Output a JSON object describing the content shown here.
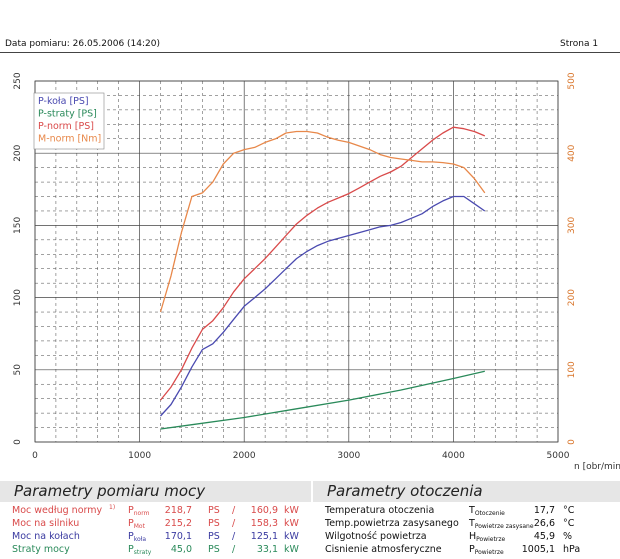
{
  "header": {
    "date_label": "Data pomiaru: 26.05.2006 (14:20)",
    "page_label": "Strona 1"
  },
  "colors": {
    "p_kola": "#4a4ab0",
    "p_straty": "#2a8a5a",
    "p_norm": "#d94a4a",
    "m_norm": "#e8884a",
    "right_axis": "#d9752a"
  },
  "chart_data": {
    "type": "line",
    "x_axis": {
      "label": "n [obr/min]",
      "ticks": [
        0,
        1000,
        2000,
        3000,
        4000,
        5000
      ],
      "lim": [
        0,
        5000
      ]
    },
    "y_left": {
      "ticks": [
        0,
        50,
        100,
        150,
        200,
        250
      ],
      "lim": [
        0,
        250
      ]
    },
    "y_right": {
      "ticks": [
        0,
        100,
        200,
        300,
        400,
        500
      ],
      "lim": [
        0,
        500
      ]
    },
    "grid": true,
    "legend_position": "top-left",
    "series": [
      {
        "name": "P-koła [PS]",
        "axis": "left",
        "color": "#4a4ab0",
        "x": [
          1200,
          1300,
          1400,
          1500,
          1600,
          1700,
          1800,
          1900,
          2000,
          2100,
          2200,
          2300,
          2400,
          2500,
          2600,
          2700,
          2800,
          2900,
          3000,
          3100,
          3200,
          3300,
          3400,
          3500,
          3600,
          3700,
          3800,
          3900,
          4000,
          4100,
          4200,
          4300
        ],
        "y": [
          18,
          26,
          38,
          52,
          64,
          68,
          76,
          85,
          94,
          100,
          106,
          113,
          120,
          127,
          132,
          136,
          139,
          141,
          143,
          145,
          147,
          149,
          150,
          152,
          155,
          158,
          163,
          167,
          170,
          170,
          165,
          160
        ]
      },
      {
        "name": "P-straty [PS]",
        "axis": "left",
        "color": "#2a8a5a",
        "x": [
          1200,
          1500,
          2000,
          2500,
          3000,
          3500,
          4000,
          4300
        ],
        "y": [
          9,
          12,
          17,
          23,
          29,
          36,
          44,
          49
        ]
      },
      {
        "name": "P-norm [PS]",
        "axis": "left",
        "color": "#d94a4a",
        "x": [
          1200,
          1300,
          1400,
          1500,
          1600,
          1700,
          1800,
          1900,
          2000,
          2100,
          2200,
          2300,
          2400,
          2500,
          2600,
          2700,
          2800,
          2900,
          3000,
          3100,
          3200,
          3300,
          3400,
          3500,
          3600,
          3700,
          3800,
          3900,
          4000,
          4100,
          4200,
          4300
        ],
        "y": [
          29,
          38,
          50,
          65,
          78,
          84,
          93,
          104,
          113,
          120,
          127,
          135,
          143,
          151,
          157,
          162,
          166,
          169,
          172,
          176,
          180,
          184,
          187,
          191,
          197,
          203,
          209,
          214,
          218,
          217,
          215,
          212
        ]
      },
      {
        "name": "M-norm [Nm]",
        "axis": "right",
        "color": "#e8884a",
        "x": [
          1200,
          1300,
          1400,
          1500,
          1600,
          1700,
          1800,
          1900,
          2000,
          2100,
          2200,
          2300,
          2400,
          2500,
          2600,
          2700,
          2800,
          2900,
          3000,
          3100,
          3200,
          3300,
          3400,
          3500,
          3600,
          3700,
          3800,
          3900,
          4000,
          4100,
          4200,
          4300
        ],
        "y": [
          180,
          230,
          290,
          340,
          345,
          360,
          385,
          400,
          405,
          408,
          415,
          420,
          428,
          430,
          430,
          428,
          422,
          418,
          415,
          410,
          405,
          398,
          394,
          392,
          390,
          388,
          388,
          387,
          385,
          380,
          365,
          345
        ]
      }
    ]
  },
  "panels": {
    "left": {
      "title": "Parametry pomiaru mocy",
      "rows": [
        {
          "label": "Moc według normy",
          "note": "1)",
          "sym": "P",
          "sub": "norm",
          "ps_val": "218,7",
          "ps_unit": "PS",
          "sep": "/",
          "kw_val": "160,9",
          "kw_unit": "kW",
          "color": "#d94a4a"
        },
        {
          "label": "Moc na silniku",
          "note": "",
          "sym": "P",
          "sub": "Mot",
          "ps_val": "215,2",
          "ps_unit": "PS",
          "sep": "/",
          "kw_val": "158,3",
          "kw_unit": "kW",
          "color": "#d94a4a"
        },
        {
          "label": "Moc na kołach",
          "note": "",
          "sym": "P",
          "sub": "koła",
          "ps_val": "170,1",
          "ps_unit": "PS",
          "sep": "/",
          "kw_val": "125,1",
          "kw_unit": "kW",
          "color": "#3a3aa0"
        },
        {
          "label": "Straty mocy",
          "note": "",
          "sym": "P",
          "sub": "straty",
          "ps_val": "45,0",
          "ps_unit": "PS",
          "sep": "/",
          "kw_val": "33,1",
          "kw_unit": "kW",
          "color": "#2a8a5a"
        }
      ]
    },
    "right": {
      "title": "Parametry otoczenia",
      "rows": [
        {
          "label": "Temperatura otoczenia",
          "sym": "T",
          "sub": "Otoczenie",
          "value": "17,7",
          "unit": "°C"
        },
        {
          "label": "Temp.powietrza zasysanego",
          "sym": "T",
          "sub": "Powietrze zasysane",
          "value": "26,6",
          "unit": "°C"
        },
        {
          "label": "Wilgotność powietrza",
          "sym": "H",
          "sub": "Powietrze",
          "value": "45,9",
          "unit": "%"
        },
        {
          "label": "Cisnienie atmosferyczne",
          "sym": "P",
          "sub": "Powietrze",
          "value": "1005,1",
          "unit": "hPa"
        }
      ]
    }
  }
}
